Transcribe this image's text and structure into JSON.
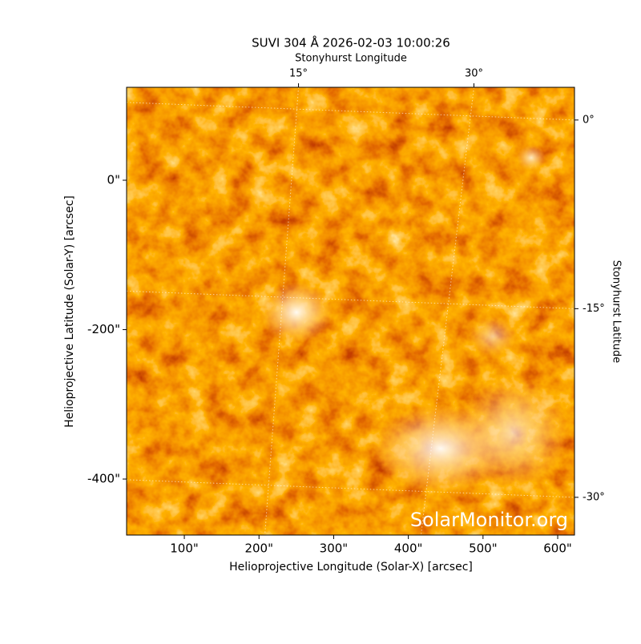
{
  "chart_data": {
    "type": "image",
    "title": "SUVI 304 Å 2026-02-03 10:00:26",
    "x_label": "Helioprojective Longitude (Solar-X) [arcsec]",
    "y_label": "Helioprojective Latitude (Solar-Y) [arcsec]",
    "x2_label": "Stonyhurst Longitude",
    "y2_label": "Stonyhurst Latitude",
    "watermark": "SolarMonitor.org",
    "xlim": [
      22.7,
      622.5
    ],
    "ylim": [
      -475,
      124.4
    ],
    "xticks": [
      {
        "value": 100,
        "label": "100\""
      },
      {
        "value": 200,
        "label": "200\""
      },
      {
        "value": 300,
        "label": "300\""
      },
      {
        "value": 400,
        "label": "400\""
      },
      {
        "value": 500,
        "label": "500\""
      },
      {
        "value": 600,
        "label": "600\""
      }
    ],
    "yticks": [
      {
        "value": 0,
        "label": "0\""
      },
      {
        "value": -200,
        "label": "-200\""
      },
      {
        "value": -400,
        "label": "-400\""
      }
    ],
    "x2lim": [
      0.3,
      38.6
    ],
    "x2ticks": [
      {
        "value": 15,
        "label": "15°"
      },
      {
        "value": 30,
        "label": "30°"
      }
    ],
    "y2lim": [
      -33,
      2.6
    ],
    "y2ticks": [
      {
        "value": 0,
        "label": "0°"
      },
      {
        "value": -15,
        "label": "-15°"
      },
      {
        "value": -30,
        "label": "-30°"
      }
    ],
    "grid": true
  }
}
